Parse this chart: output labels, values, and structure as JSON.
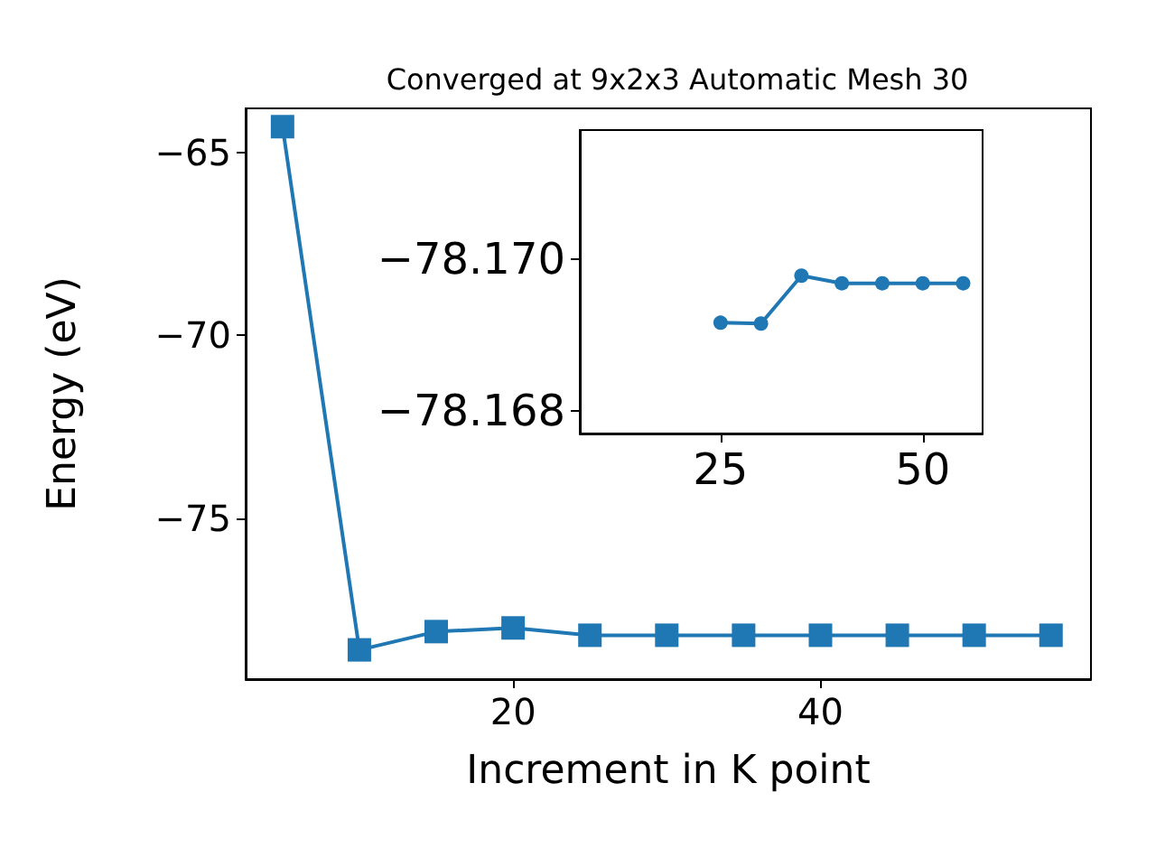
{
  "chart_data": [
    {
      "type": "line",
      "title": "Converged at 9x2x3 Automatic Mesh 30",
      "xlabel": "Increment in K point",
      "ylabel": "Energy (eV)",
      "x": [
        5,
        10,
        15,
        20,
        25,
        30,
        35,
        40,
        45,
        50,
        55
      ],
      "series": [
        {
          "color": "#1f77b4",
          "values": [
            -64.3,
            -78.6,
            -78.1,
            -78.0,
            -78.2,
            -78.2,
            -78.2,
            -78.2,
            -78.2,
            -78.2,
            -78.2
          ]
        }
      ],
      "xlim": [
        2.6,
        57.6
      ],
      "ylim": [
        -79.4,
        -63.8
      ],
      "xticks": [
        20,
        40
      ],
      "yticks": [
        {
          "value": -65,
          "label": "−65"
        },
        {
          "value": -70,
          "label": "−70"
        },
        {
          "value": -75,
          "label": "−75"
        }
      ],
      "marker": "square",
      "grid": false
    },
    {
      "type": "line",
      "x": [
        25,
        30,
        35,
        40,
        45,
        50,
        55
      ],
      "series": [
        {
          "color": "#1f77b4",
          "values": [
            -78.16916,
            -78.16915,
            -78.16978,
            -78.16968,
            -78.16968,
            -78.16968,
            -78.16968
          ]
        }
      ],
      "xlim": [
        7.6,
        57.4
      ],
      "ylim": [
        -78.1677,
        -78.1717
      ],
      "xticks": [
        25,
        50
      ],
      "yticks": [
        {
          "value": -78.17,
          "label": "−78.170"
        },
        {
          "value": -78.168,
          "label": "−78.168"
        }
      ],
      "marker": "circle",
      "grid": false
    }
  ]
}
